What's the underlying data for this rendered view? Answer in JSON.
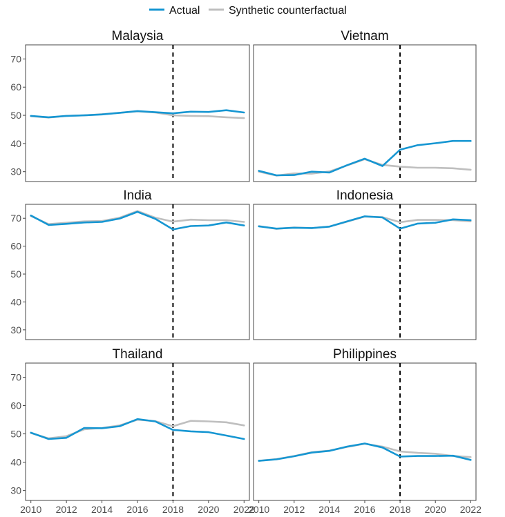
{
  "legend": {
    "actual_label": "Actual",
    "synthetic_label": "Synthetic counterfactual"
  },
  "colors": {
    "actual": "#1696d2",
    "synthetic": "#bfbfbf",
    "treatment_line": "#000000"
  },
  "chart_data": {
    "type": "line",
    "facets": "2x3 grid, shared axes",
    "x": [
      2010,
      2011,
      2012,
      2013,
      2014,
      2015,
      2016,
      2017,
      2018,
      2019,
      2020,
      2021,
      2022
    ],
    "xticks": [
      "2010",
      "2012",
      "2014",
      "2016",
      "2018",
      "2020",
      "2022"
    ],
    "yticks": [
      "30",
      "40",
      "50",
      "60",
      "70"
    ],
    "xlim": [
      2009.7,
      2022.3
    ],
    "ylim": [
      26.5,
      75
    ],
    "treatment_year": 2018,
    "panels": [
      {
        "title": "Malaysia",
        "series": [
          {
            "name": "Actual",
            "values": [
              49.8,
              49.3,
              49.8,
              50.0,
              50.3,
              50.9,
              51.5,
              51.1,
              50.7,
              51.3,
              51.2,
              51.8,
              51.0
            ]
          },
          {
            "name": "Synthetic counterfactual",
            "values": [
              49.7,
              49.2,
              49.8,
              50.0,
              50.4,
              50.9,
              51.4,
              51.0,
              50.0,
              49.8,
              49.7,
              49.3,
              49.0
            ]
          }
        ]
      },
      {
        "title": "Vietnam",
        "series": [
          {
            "name": "Actual",
            "values": [
              30.3,
              28.7,
              28.8,
              30.0,
              29.7,
              32.3,
              34.6,
              32.0,
              37.8,
              39.4,
              40.1,
              40.9,
              40.9
            ]
          },
          {
            "name": "Synthetic counterfactual",
            "values": [
              30.0,
              28.6,
              29.4,
              29.3,
              30.1,
              32.2,
              34.4,
              32.4,
              31.8,
              31.4,
              31.4,
              31.2,
              30.7
            ]
          }
        ]
      },
      {
        "title": "India",
        "series": [
          {
            "name": "Actual",
            "values": [
              71.0,
              67.6,
              68.0,
              68.5,
              68.7,
              69.9,
              72.3,
              69.8,
              66.0,
              67.2,
              67.4,
              68.5,
              67.4
            ]
          },
          {
            "name": "Synthetic counterfactual",
            "values": [
              70.8,
              67.9,
              68.4,
              68.9,
              69.0,
              70.2,
              72.6,
              70.2,
              68.8,
              69.5,
              69.3,
              69.3,
              68.7
            ]
          }
        ]
      },
      {
        "title": "Indonesia",
        "series": [
          {
            "name": "Actual",
            "values": [
              67.1,
              66.3,
              66.6,
              66.5,
              67.0,
              68.9,
              70.7,
              70.3,
              66.3,
              68.1,
              68.4,
              69.6,
              69.3
            ]
          },
          {
            "name": "Synthetic counterfactual",
            "values": [
              67.2,
              66.2,
              66.7,
              66.5,
              67.0,
              68.8,
              70.6,
              70.4,
              68.6,
              69.4,
              69.4,
              69.3,
              68.9
            ]
          }
        ]
      },
      {
        "title": "Thailand",
        "series": [
          {
            "name": "Actual",
            "values": [
              50.4,
              48.2,
              48.6,
              52.1,
              52.0,
              52.7,
              55.2,
              54.4,
              51.4,
              50.9,
              50.6,
              49.4,
              48.2
            ]
          },
          {
            "name": "Synthetic counterfactual",
            "values": [
              50.3,
              48.4,
              49.2,
              51.6,
              52.1,
              53.0,
              55.0,
              54.5,
              52.7,
              54.6,
              54.4,
              54.1,
              53.0
            ]
          }
        ]
      },
      {
        "title": "Philippines",
        "series": [
          {
            "name": "Actual",
            "values": [
              40.5,
              41.0,
              42.1,
              43.4,
              44.0,
              45.5,
              46.6,
              45.2,
              42.0,
              42.2,
              42.2,
              42.3,
              40.8
            ]
          },
          {
            "name": "Synthetic counterfactual",
            "values": [
              40.5,
              41.1,
              42.2,
              43.5,
              44.1,
              45.4,
              46.5,
              45.5,
              43.8,
              43.3,
              43.0,
              42.2,
              41.8
            ]
          }
        ]
      }
    ]
  }
}
